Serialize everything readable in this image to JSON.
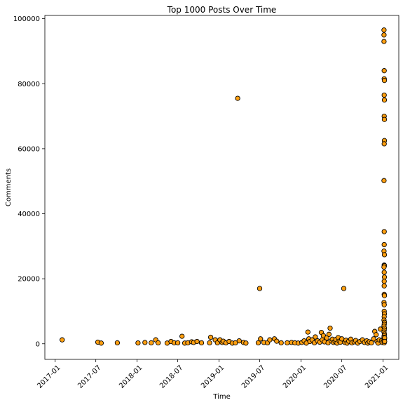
{
  "chart_data": {
    "type": "scatter",
    "title": "Top 1000 Posts Over Time",
    "xlabel": "Time",
    "ylabel": "Comments",
    "xlim": [
      "2016-11-16",
      "2021-03-12"
    ],
    "ylim": [
      -4800,
      101000
    ],
    "x_ticks": [
      "2017-01",
      "2017-07",
      "2018-01",
      "2018-07",
      "2019-01",
      "2019-07",
      "2020-01",
      "2020-07",
      "2021-01"
    ],
    "y_ticks": [
      0,
      20000,
      40000,
      60000,
      80000,
      100000
    ],
    "y_tick_labels": [
      "0",
      "20000",
      "40000",
      "60000",
      "80000",
      "100000"
    ],
    "grid": false,
    "marker_color": "#ff9f10",
    "marker_edge_color": "#000000",
    "points": [
      [
        "2017-02-01",
        1200
      ],
      [
        "2017-07-10",
        500
      ],
      [
        "2017-07-25",
        200
      ],
      [
        "2017-10-05",
        300
      ],
      [
        "2018-01-05",
        250
      ],
      [
        "2018-02-05",
        400
      ],
      [
        "2018-03-05",
        300
      ],
      [
        "2018-03-25",
        1200
      ],
      [
        "2018-04-05",
        300
      ],
      [
        "2018-05-15",
        200
      ],
      [
        "2018-06-01",
        700
      ],
      [
        "2018-06-15",
        300
      ],
      [
        "2018-07-01",
        300
      ],
      [
        "2018-07-20",
        2300
      ],
      [
        "2018-08-01",
        200
      ],
      [
        "2018-08-15",
        300
      ],
      [
        "2018-09-01",
        600
      ],
      [
        "2018-09-10",
        400
      ],
      [
        "2018-09-25",
        700
      ],
      [
        "2018-10-15",
        300
      ],
      [
        "2018-11-20",
        300
      ],
      [
        "2018-11-25",
        2000
      ],
      [
        "2018-12-15",
        1200
      ],
      [
        "2018-12-25",
        300
      ],
      [
        "2019-01-05",
        1200
      ],
      [
        "2019-01-15",
        400
      ],
      [
        "2019-01-20",
        800
      ],
      [
        "2019-02-01",
        300
      ],
      [
        "2019-02-15",
        700
      ],
      [
        "2019-03-01",
        200
      ],
      [
        "2019-03-15",
        300
      ],
      [
        "2019-03-25",
        75500
      ],
      [
        "2019-04-01",
        900
      ],
      [
        "2019-04-20",
        400
      ],
      [
        "2019-05-01",
        200
      ],
      [
        "2019-06-25",
        300
      ],
      [
        "2019-07-01",
        17000
      ],
      [
        "2019-07-05",
        1500
      ],
      [
        "2019-07-20",
        400
      ],
      [
        "2019-08-05",
        300
      ],
      [
        "2019-08-15",
        1200
      ],
      [
        "2019-09-05",
        1500
      ],
      [
        "2019-09-15",
        800
      ],
      [
        "2019-10-05",
        300
      ],
      [
        "2019-11-01",
        300
      ],
      [
        "2019-11-20",
        400
      ],
      [
        "2019-12-05",
        300
      ],
      [
        "2019-12-20",
        200
      ],
      [
        "2020-01-05",
        400
      ],
      [
        "2020-01-15",
        900
      ],
      [
        "2020-01-25",
        200
      ],
      [
        "2020-02-01",
        3600
      ],
      [
        "2020-02-05",
        1500
      ],
      [
        "2020-02-10",
        700
      ],
      [
        "2020-02-20",
        1200
      ],
      [
        "2020-03-01",
        300
      ],
      [
        "2020-03-05",
        2100
      ],
      [
        "2020-03-15",
        900
      ],
      [
        "2020-03-25",
        500
      ],
      [
        "2020-04-01",
        3500
      ],
      [
        "2020-04-05",
        1200
      ],
      [
        "2020-04-10",
        2500
      ],
      [
        "2020-04-15",
        600
      ],
      [
        "2020-04-25",
        1800
      ],
      [
        "2020-05-01",
        300
      ],
      [
        "2020-05-05",
        2900
      ],
      [
        "2020-05-10",
        4800
      ],
      [
        "2020-05-15",
        900
      ],
      [
        "2020-05-20",
        1400
      ],
      [
        "2020-05-25",
        400
      ],
      [
        "2020-06-01",
        700
      ],
      [
        "2020-06-05",
        1300
      ],
      [
        "2020-06-10",
        200
      ],
      [
        "2020-06-15",
        1900
      ],
      [
        "2020-06-20",
        800
      ],
      [
        "2020-06-25",
        500
      ],
      [
        "2020-07-01",
        1500
      ],
      [
        "2020-07-10",
        17000
      ],
      [
        "2020-07-15",
        400
      ],
      [
        "2020-07-20",
        1100
      ],
      [
        "2020-07-25",
        200
      ],
      [
        "2020-08-01",
        800
      ],
      [
        "2020-08-10",
        1400
      ],
      [
        "2020-08-15",
        300
      ],
      [
        "2020-08-25",
        600
      ],
      [
        "2020-09-01",
        1000
      ],
      [
        "2020-09-10",
        200
      ],
      [
        "2020-09-20",
        700
      ],
      [
        "2020-10-01",
        1200
      ],
      [
        "2020-10-10",
        400
      ],
      [
        "2020-10-20",
        900
      ],
      [
        "2020-10-25",
        200
      ],
      [
        "2020-11-01",
        600
      ],
      [
        "2020-11-10",
        300
      ],
      [
        "2020-11-20",
        1500
      ],
      [
        "2020-11-25",
        3800
      ],
      [
        "2020-12-01",
        2800
      ],
      [
        "2020-12-05",
        700
      ],
      [
        "2020-12-10",
        200
      ],
      [
        "2020-12-15",
        1200
      ],
      [
        "2020-12-20",
        4500
      ],
      [
        "2020-12-25",
        900
      ],
      [
        "2020-12-28",
        400
      ],
      [
        "2021-01-05",
        96500
      ],
      [
        "2021-01-05",
        95000
      ],
      [
        "2021-01-05",
        93000
      ],
      [
        "2021-01-06",
        84000
      ],
      [
        "2021-01-06",
        81500
      ],
      [
        "2021-01-07",
        81000
      ],
      [
        "2021-01-06",
        76500
      ],
      [
        "2021-01-07",
        75000
      ],
      [
        "2021-01-06",
        70000
      ],
      [
        "2021-01-07",
        69000
      ],
      [
        "2021-01-07",
        62500
      ],
      [
        "2021-01-06",
        61500
      ],
      [
        "2021-01-05",
        50200
      ],
      [
        "2021-01-06",
        34500
      ],
      [
        "2021-01-06",
        30500
      ],
      [
        "2021-01-05",
        28500
      ],
      [
        "2021-01-07",
        27400
      ],
      [
        "2021-01-06",
        24200
      ],
      [
        "2021-01-07",
        24000
      ],
      [
        "2021-01-05",
        23600
      ],
      [
        "2021-01-06",
        22000
      ],
      [
        "2021-01-07",
        20500
      ],
      [
        "2021-01-06",
        19200
      ],
      [
        "2021-01-06",
        17800
      ],
      [
        "2021-01-06",
        15200
      ],
      [
        "2021-01-07",
        14800
      ],
      [
        "2021-01-05",
        12700
      ],
      [
        "2021-01-06",
        12000
      ],
      [
        "2021-01-06",
        10000
      ],
      [
        "2021-01-07",
        9200
      ],
      [
        "2021-01-06",
        8300
      ],
      [
        "2021-01-05",
        7300
      ],
      [
        "2021-01-07",
        6600
      ],
      [
        "2021-01-06",
        6000
      ],
      [
        "2021-01-05",
        5400
      ],
      [
        "2021-01-07",
        4800
      ],
      [
        "2021-01-06",
        4200
      ],
      [
        "2021-01-05",
        3600
      ],
      [
        "2021-01-07",
        3000
      ],
      [
        "2021-01-06",
        2500
      ],
      [
        "2021-01-05",
        2000
      ],
      [
        "2021-01-07",
        1600
      ],
      [
        "2021-01-06",
        1200
      ],
      [
        "2021-01-05",
        900
      ],
      [
        "2021-01-07",
        600
      ],
      [
        "2021-01-06",
        300
      ],
      [
        "2021-01-08",
        1800
      ],
      [
        "2021-01-08",
        700
      ]
    ]
  }
}
